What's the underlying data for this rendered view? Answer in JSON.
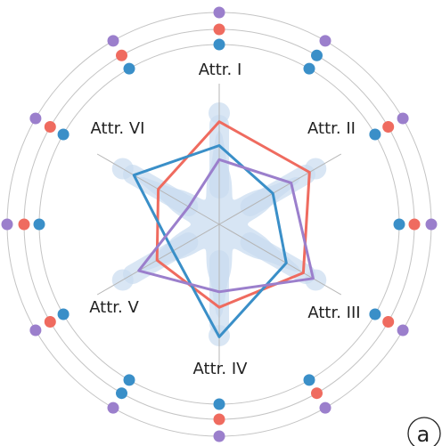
{
  "panel_label": "a",
  "chart_data": {
    "type": "radar",
    "axes": [
      "Attr. I",
      "Attr. II",
      "Attr. III",
      "Attr. IV",
      "Attr. V",
      "Attr. VI"
    ],
    "range": [
      0,
      1
    ],
    "grid": "spokes",
    "series": [
      {
        "color": "#ef6b5f",
        "values": [
          0.73,
          0.74,
          0.69,
          0.59,
          0.51,
          0.5
        ]
      },
      {
        "color": "#3a8fc8",
        "values": [
          0.56,
          0.44,
          0.55,
          0.8,
          0.38,
          0.7
        ]
      },
      {
        "color": "#9b7fcc",
        "values": [
          0.46,
          0.59,
          0.77,
          0.48,
          0.66,
          0.25
        ]
      }
    ],
    "density_color": "#c9dcf0",
    "outer_rings": 3,
    "ring_dot_colors": [
      "#3a8fc8",
      "#ef6b5f",
      "#9b7fcc"
    ],
    "ring_dots": [
      [
        "#3a8fc8",
        "#ef6b5f",
        "#9b7fcc"
      ],
      [
        "#3a8fc8",
        "#3a8fc8",
        "#9b7fcc"
      ],
      [
        "#3a8fc8",
        "#ef6b5f",
        "#9b7fcc"
      ],
      [
        "#3a8fc8",
        "#ef6b5f",
        "#9b7fcc"
      ],
      [
        "#3a8fc8",
        "#ef6b5f",
        "#9b7fcc"
      ],
      [
        "#3a8fc8",
        "#ef6b5f",
        "#9b7fcc"
      ],
      [
        "#3a8fc8",
        "#ef6b5f",
        "#9b7fcc"
      ],
      [
        "#3a8fc8",
        "#3a8fc8",
        "#9b7fcc"
      ],
      [
        "#3a8fc8",
        "#ef6b5f",
        "#9b7fcc"
      ],
      [
        "#3a8fc8",
        "#ef6b5f",
        "#9b7fcc"
      ],
      [
        "#3a8fc8",
        "#ef6b5f",
        "#9b7fcc"
      ],
      [
        "#3a8fc8",
        "#ef6b5f",
        "#9b7fcc"
      ]
    ]
  }
}
